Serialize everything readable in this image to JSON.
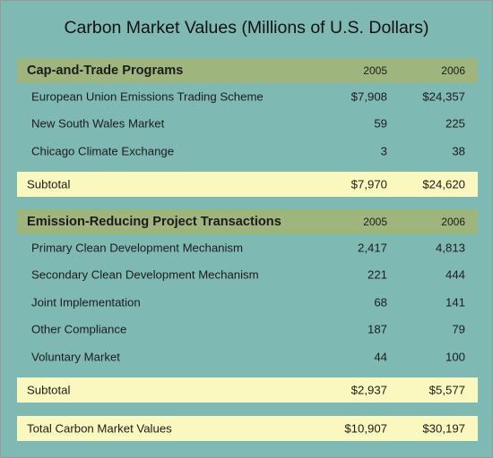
{
  "title": "Carbon Market Values (Millions of U.S. Dollars)",
  "section1": {
    "heading": "Cap-and-Trade Programs",
    "col1": "2005",
    "col2": "2006",
    "rows": [
      {
        "label": "European Union Emissions Trading Scheme",
        "v2005": "$7,908",
        "v2006": "$24,357"
      },
      {
        "label": "New South Wales Market",
        "v2005": "59",
        "v2006": "225"
      },
      {
        "label": "Chicago Climate Exchange",
        "v2005": "3",
        "v2006": "38"
      }
    ],
    "subtotal": {
      "label": "Subtotal",
      "v2005": "$7,970",
      "v2006": "$24,620"
    }
  },
  "section2": {
    "heading": "Emission-Reducing Project Transactions",
    "col1": "2005",
    "col2": "2006",
    "rows": [
      {
        "label": "Primary Clean Development Mechanism",
        "v2005": "2,417",
        "v2006": "4,813"
      },
      {
        "label": "Secondary Clean Development Mechanism",
        "v2005": "221",
        "v2006": "444"
      },
      {
        "label": "Joint Implementation",
        "v2005": "68",
        "v2006": "141"
      },
      {
        "label": "Other Compliance",
        "v2005": "187",
        "v2006": "79"
      },
      {
        "label": "Voluntary Market",
        "v2005": "44",
        "v2006": "100"
      }
    ],
    "subtotal": {
      "label": "Subtotal",
      "v2005": "$2,937",
      "v2006": "$5,577"
    }
  },
  "total": {
    "label": "Total Carbon Market Values",
    "v2005": "$10,907",
    "v2006": "$30,197"
  },
  "colors": {
    "background": "#7fb9b3",
    "header_band": "#9eb67d",
    "subtotal_band": "#fbf8bf"
  }
}
